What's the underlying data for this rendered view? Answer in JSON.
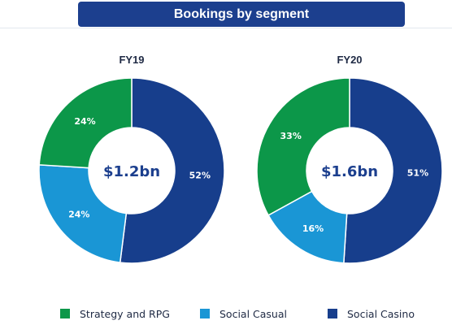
{
  "header": {
    "title": "Bookings by segment"
  },
  "colors": {
    "strategy": "#0c9749",
    "casual": "#1a96d5",
    "casino": "#173e8c",
    "title_bg": "#1c3f8e"
  },
  "chart_data": [
    {
      "type": "pie",
      "title": "FY19",
      "center_label": "$1.2bn",
      "slices": [
        {
          "name": "Social Casino",
          "value": 52,
          "label": "52%",
          "color": "#173e8c"
        },
        {
          "name": "Social Casual",
          "value": 24,
          "label": "24%",
          "color": "#1a96d5"
        },
        {
          "name": "Strategy and RPG",
          "value": 24,
          "label": "24%",
          "color": "#0c9749"
        }
      ]
    },
    {
      "type": "pie",
      "title": "FY20",
      "center_label": "$1.6bn",
      "slices": [
        {
          "name": "Social Casino",
          "value": 51,
          "label": "51%",
          "color": "#173e8c"
        },
        {
          "name": "Social Casual",
          "value": 16,
          "label": "16%",
          "color": "#1a96d5"
        },
        {
          "name": "Strategy and RPG",
          "value": 33,
          "label": "33%",
          "color": "#0c9749"
        }
      ]
    }
  ],
  "legend": [
    {
      "label": "Strategy and RPG",
      "color": "#0c9749"
    },
    {
      "label": "Social Casual",
      "color": "#1a96d5"
    },
    {
      "label": "Social Casino",
      "color": "#173e8c"
    }
  ]
}
